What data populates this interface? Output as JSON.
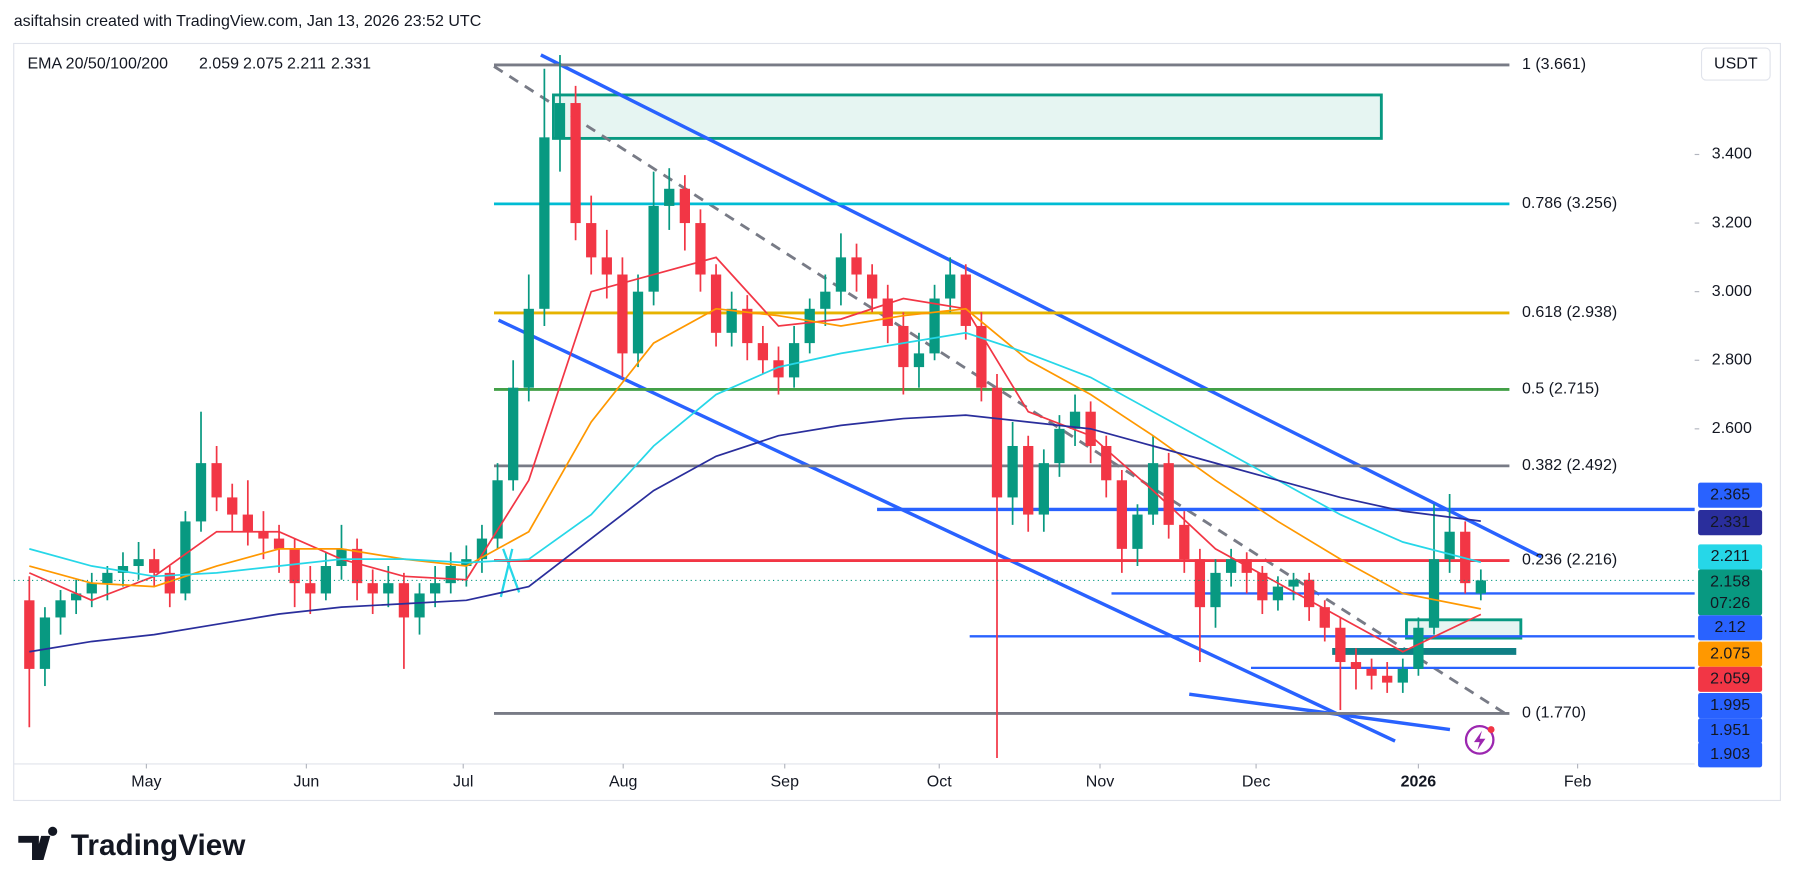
{
  "chart_data": {
    "type": "candlestick",
    "header": "asiftahsin created with TradingView.com, Jan 13, 2026 23:52 UTC",
    "watermark": "TradingView",
    "currency": "USDT",
    "countdown": "07:26",
    "ema_title": "EMA 20/50/100/200",
    "up_color": "#089981",
    "down_color": "#f23645",
    "ylim": [
      1.633,
      3.717
    ],
    "yticks": [
      {
        "value": 2.6,
        "label": "2.600"
      },
      {
        "value": 2.8,
        "label": "2.800"
      },
      {
        "value": 3.0,
        "label": "3.000"
      },
      {
        "value": 3.2,
        "label": "3.200"
      },
      {
        "value": 3.4,
        "label": "3.400"
      }
    ],
    "xlim": [
      -1,
      106.7
    ],
    "xticks": [
      {
        "value": 7.5,
        "label": "May"
      },
      {
        "value": 17.75,
        "label": "Jun"
      },
      {
        "value": 27.8,
        "label": "Jul"
      },
      {
        "value": 38.05,
        "label": "Aug"
      },
      {
        "value": 48.4,
        "label": "Sep"
      },
      {
        "value": 58.3,
        "label": "Oct"
      },
      {
        "value": 68.6,
        "label": "Nov"
      },
      {
        "value": 78.6,
        "label": "Dec"
      },
      {
        "value": 89,
        "label": "2026"
      },
      {
        "value": 99.2,
        "label": "Feb"
      }
    ],
    "ohlc": [
      [
        2.1,
        2.17,
        1.73,
        1.9
      ],
      [
        1.9,
        2.08,
        1.85,
        2.05
      ],
      [
        2.05,
        2.13,
        2.0,
        2.1
      ],
      [
        2.1,
        2.16,
        2.06,
        2.12
      ],
      [
        2.12,
        2.18,
        2.08,
        2.15
      ],
      [
        2.15,
        2.2,
        2.1,
        2.18
      ],
      [
        2.18,
        2.24,
        2.14,
        2.2
      ],
      [
        2.2,
        2.27,
        2.16,
        2.22
      ],
      [
        2.22,
        2.25,
        2.14,
        2.18
      ],
      [
        2.18,
        2.2,
        2.08,
        2.12
      ],
      [
        2.12,
        2.36,
        2.1,
        2.33
      ],
      [
        2.33,
        2.65,
        2.3,
        2.5
      ],
      [
        2.5,
        2.55,
        2.36,
        2.4
      ],
      [
        2.4,
        2.44,
        2.3,
        2.35
      ],
      [
        2.35,
        2.45,
        2.26,
        2.3
      ],
      [
        2.3,
        2.36,
        2.22,
        2.28
      ],
      [
        2.28,
        2.32,
        2.18,
        2.25
      ],
      [
        2.25,
        2.28,
        2.08,
        2.15
      ],
      [
        2.15,
        2.2,
        2.06,
        2.12
      ],
      [
        2.12,
        2.24,
        2.1,
        2.2
      ],
      [
        2.2,
        2.32,
        2.16,
        2.25
      ],
      [
        2.25,
        2.28,
        2.1,
        2.15
      ],
      [
        2.15,
        2.19,
        2.06,
        2.12
      ],
      [
        2.12,
        2.2,
        2.08,
        2.15
      ],
      [
        2.15,
        2.18,
        1.9,
        2.05
      ],
      [
        2.05,
        2.15,
        2.0,
        2.12
      ],
      [
        2.12,
        2.2,
        2.08,
        2.15
      ],
      [
        2.15,
        2.24,
        2.12,
        2.2
      ],
      [
        2.2,
        2.26,
        2.14,
        2.22
      ],
      [
        2.22,
        2.32,
        2.18,
        2.28
      ],
      [
        2.28,
        2.5,
        2.25,
        2.45
      ],
      [
        2.45,
        2.8,
        2.42,
        2.72
      ],
      [
        2.72,
        3.05,
        2.68,
        2.95
      ],
      [
        2.95,
        3.65,
        2.9,
        3.45
      ],
      [
        3.45,
        3.69,
        3.35,
        3.55
      ],
      [
        3.55,
        3.6,
        3.15,
        3.2
      ],
      [
        3.2,
        3.28,
        3.05,
        3.1
      ],
      [
        3.1,
        3.18,
        2.98,
        3.05
      ],
      [
        3.05,
        3.1,
        2.75,
        2.82
      ],
      [
        2.82,
        3.05,
        2.78,
        3.0
      ],
      [
        3.0,
        3.35,
        2.96,
        3.25
      ],
      [
        3.25,
        3.36,
        3.18,
        3.3
      ],
      [
        3.3,
        3.34,
        3.12,
        3.2
      ],
      [
        3.2,
        3.24,
        3.0,
        3.05
      ],
      [
        3.05,
        3.08,
        2.84,
        2.88
      ],
      [
        2.88,
        3.0,
        2.84,
        2.95
      ],
      [
        2.95,
        2.99,
        2.8,
        2.85
      ],
      [
        2.85,
        2.9,
        2.76,
        2.8
      ],
      [
        2.8,
        2.84,
        2.7,
        2.75
      ],
      [
        2.75,
        2.9,
        2.72,
        2.85
      ],
      [
        2.85,
        2.98,
        2.82,
        2.95
      ],
      [
        2.95,
        3.05,
        2.9,
        3.0
      ],
      [
        3.0,
        3.17,
        2.96,
        3.1
      ],
      [
        3.1,
        3.14,
        3.0,
        3.05
      ],
      [
        3.05,
        3.08,
        2.94,
        2.98
      ],
      [
        2.98,
        3.02,
        2.85,
        2.9
      ],
      [
        2.9,
        2.94,
        2.7,
        2.78
      ],
      [
        2.78,
        2.88,
        2.72,
        2.82
      ],
      [
        2.82,
        3.02,
        2.8,
        2.98
      ],
      [
        2.98,
        3.1,
        2.94,
        3.05
      ],
      [
        3.05,
        3.08,
        2.86,
        2.9
      ],
      [
        2.9,
        2.94,
        2.68,
        2.72
      ],
      [
        2.72,
        2.76,
        1.64,
        2.4
      ],
      [
        2.4,
        2.62,
        2.32,
        2.55
      ],
      [
        2.55,
        2.58,
        2.3,
        2.35
      ],
      [
        2.35,
        2.54,
        2.3,
        2.5
      ],
      [
        2.5,
        2.64,
        2.46,
        2.6
      ],
      [
        2.6,
        2.7,
        2.55,
        2.65
      ],
      [
        2.65,
        2.68,
        2.5,
        2.55
      ],
      [
        2.55,
        2.58,
        2.4,
        2.45
      ],
      [
        2.45,
        2.48,
        2.18,
        2.25
      ],
      [
        2.25,
        2.38,
        2.2,
        2.35
      ],
      [
        2.35,
        2.58,
        2.32,
        2.5
      ],
      [
        2.5,
        2.53,
        2.28,
        2.32
      ],
      [
        2.32,
        2.36,
        2.18,
        2.22
      ],
      [
        2.22,
        2.25,
        1.92,
        2.08
      ],
      [
        2.08,
        2.22,
        2.02,
        2.18
      ],
      [
        2.18,
        2.25,
        2.14,
        2.22
      ],
      [
        2.22,
        2.24,
        2.12,
        2.18
      ],
      [
        2.18,
        2.2,
        2.06,
        2.1
      ],
      [
        2.1,
        2.17,
        2.07,
        2.14
      ],
      [
        2.14,
        2.18,
        2.1,
        2.16
      ],
      [
        2.16,
        2.18,
        2.04,
        2.08
      ],
      [
        2.08,
        2.1,
        1.98,
        2.02
      ],
      [
        2.02,
        2.05,
        1.78,
        1.92
      ],
      [
        1.92,
        1.96,
        1.84,
        1.9
      ],
      [
        1.9,
        1.93,
        1.84,
        1.88
      ],
      [
        1.88,
        1.92,
        1.83,
        1.86
      ],
      [
        1.86,
        1.93,
        1.83,
        1.9
      ],
      [
        1.9,
        2.05,
        1.88,
        2.02
      ],
      [
        2.02,
        2.38,
        2.0,
        2.22
      ],
      [
        2.22,
        2.41,
        2.18,
        2.3
      ],
      [
        2.3,
        2.33,
        2.12,
        2.15
      ],
      [
        2.12,
        2.19,
        2.1,
        2.158
      ]
    ],
    "ema": {
      "x": [
        0,
        4,
        8,
        12,
        16,
        20,
        24,
        28,
        32,
        36,
        40,
        44,
        48,
        52,
        56,
        60,
        64,
        68,
        72,
        76,
        80,
        84,
        88,
        93
      ],
      "series": [
        {
          "color": "#f23645",
          "values": [
            2.18,
            2.1,
            2.17,
            2.3,
            2.3,
            2.22,
            2.17,
            2.16,
            2.45,
            3.0,
            3.05,
            3.1,
            2.9,
            2.92,
            2.98,
            2.95,
            2.65,
            2.58,
            2.42,
            2.25,
            2.15,
            2.05,
            1.95,
            2.059
          ]
        },
        {
          "color": "#ff9800",
          "values": [
            2.2,
            2.15,
            2.14,
            2.2,
            2.25,
            2.25,
            2.22,
            2.2,
            2.3,
            2.62,
            2.85,
            2.95,
            2.93,
            2.9,
            2.93,
            2.95,
            2.8,
            2.7,
            2.58,
            2.45,
            2.33,
            2.22,
            2.12,
            2.075
          ]
        },
        {
          "color": "#26d7e8",
          "values": [
            2.25,
            2.2,
            2.17,
            2.18,
            2.2,
            2.22,
            2.22,
            2.21,
            2.22,
            2.35,
            2.55,
            2.7,
            2.78,
            2.82,
            2.85,
            2.88,
            2.82,
            2.75,
            2.65,
            2.55,
            2.45,
            2.35,
            2.27,
            2.211
          ]
        },
        {
          "color": "#2a2e9c",
          "values": [
            1.95,
            1.98,
            2.0,
            2.03,
            2.06,
            2.08,
            2.09,
            2.1,
            2.14,
            2.28,
            2.42,
            2.52,
            2.58,
            2.61,
            2.63,
            2.64,
            2.62,
            2.6,
            2.55,
            2.5,
            2.45,
            2.4,
            2.36,
            2.331
          ]
        }
      ]
    },
    "fib": [
      {
        "label": "1 (3.661)",
        "value": 3.661,
        "color": "#787b86"
      },
      {
        "label": "0.786 (3.256)",
        "value": 3.256,
        "color": "#00bcd4"
      },
      {
        "label": "0.618 (2.938)",
        "value": 2.938,
        "color": "#e6b300"
      },
      {
        "label": "0.5 (2.715)",
        "value": 2.715,
        "color": "#43a047"
      },
      {
        "label": "0.382 (2.492)",
        "value": 2.492,
        "color": "#787b86"
      },
      {
        "label": "0.236 (2.216)",
        "value": 2.216,
        "color": "#f23645"
      },
      {
        "label": "0 (1.770)",
        "value": 1.77,
        "color": "#787b86"
      }
    ],
    "levels": [
      {
        "value": 2.365,
        "color": "#2962ff"
      },
      {
        "value": 2.12,
        "color": "#2962ff"
      },
      {
        "value": 1.995,
        "color": "#2962ff"
      },
      {
        "value": 1.951,
        "color": "#0f7f85"
      },
      {
        "value": 1.903,
        "color": "#2962ff"
      }
    ]
  }
}
